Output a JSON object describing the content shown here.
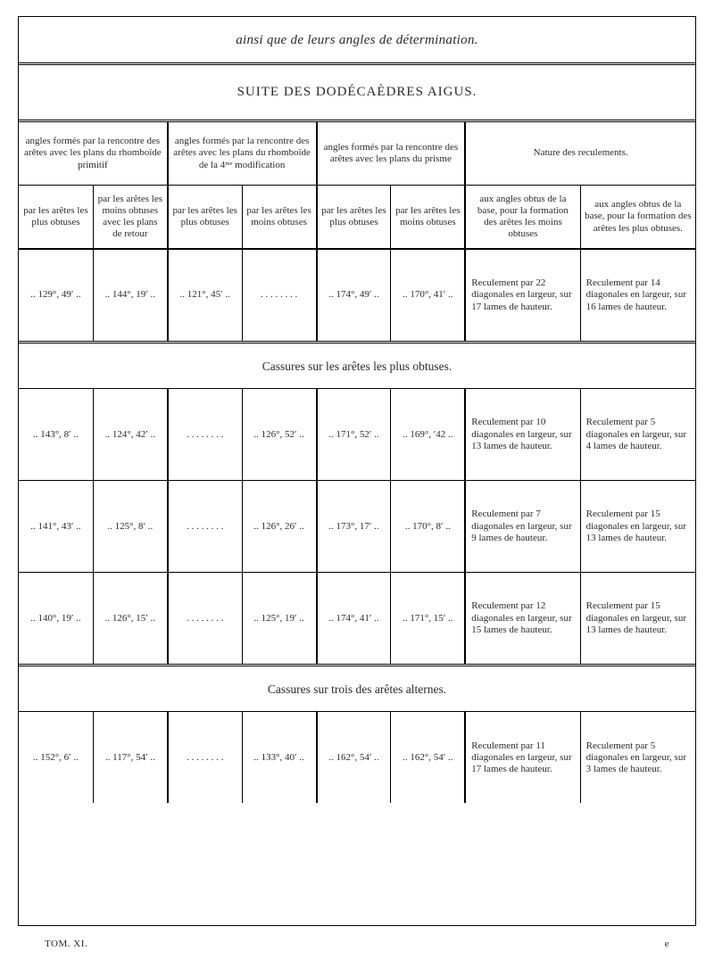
{
  "pretitle": "ainsi que de leurs angles de détermination.",
  "section_title": "SUITE DES DODÉCAÈDRES AIGUS.",
  "headers": {
    "g1": "angles formés par la rencontre des arêtes avec les plans du rhomboïde primitif",
    "g2": "angles formés par la rencontre des arêtes avec les plans du rhomboïde de la 4ᵐᵉ modification",
    "g3": "angles formés par la rencontre des arêtes avec les plans du prisme",
    "g4": "Nature des reculements.",
    "s1": "par les arêtes les plus obtuses",
    "s2": "par les arêtes les moins obtuses avec les plans de retour",
    "s3": "par les arêtes les plus obtuses",
    "s4": "par les arêtes les moins obtuses",
    "s5": "par les arêtes les plus obtuses",
    "s6": "par les arêtes les moins obtuses",
    "s7": "aux angles obtus de la base, pour la formation des arêtes les moins obtuses",
    "s8": "aux angles obtus de la base, pour la formation des arêtes les plus obtuses."
  },
  "row_main": {
    "c1": ".. 129°, 49′ ..",
    "c2": ".. 144°, 19′ ..",
    "c3": ".. 121°, 45′ ..",
    "c4": ". . . . . . . .",
    "c5": ".. 174°, 49′ ..",
    "c6": ".. 170°, 41′ ..",
    "c7": "Reculement par 22 diagonales en largeur, sur 17 lames de hauteur.",
    "c8": "Reculement par 14 diagonales en largeur, sur 16 lames de hauteur."
  },
  "section2": "Cassures sur les arêtes les plus obtuses.",
  "rows2": [
    {
      "c1": ".. 143°, 8′ ..",
      "c2": ".. 124°, 42′ ..",
      "c3": ". . . . . . . .",
      "c4": ".. 126°, 52′ ..",
      "c5": ".. 171°, 52′ ..",
      "c6": ".. 169°, ′42 ..",
      "c7": "Reculement par 10 diagonales en largeur, sur 13 lames de hauteur.",
      "c8": "Reculement par 5 diagonales en largeur, sur 4 lames de hauteur."
    },
    {
      "c1": ".. 141°, 43′ ..",
      "c2": ".. 125°, 8′ ..",
      "c3": ". . . . . . . .",
      "c4": ".. 126°, 26′ ..",
      "c5": ".. 173°, 17′ ..",
      "c6": ".. 170°, 8′ ..",
      "c7": "Reculement par 7 diagonales en largeur, sur 9 lames de hauteur.",
      "c8": "Reculement par 15 diagonales en largeur, sur 13 lames de hauteur."
    },
    {
      "c1": ".. 140°, 19′ ..",
      "c2": ".. 126°, 15′ ..",
      "c3": ". . . . . . . .",
      "c4": ".. 125°, 19′ ..",
      "c5": ".. 174°, 41′ ..",
      "c6": ".. 171°, 15′ ..",
      "c7": "Reculement par 12 diagonales en largeur, sur 15 lames de hauteur.",
      "c8": "Reculement par 15 diagonales en largeur, sur 13 lames de hauteur."
    }
  ],
  "section3": "Cassures sur trois des arêtes alternes.",
  "row3": {
    "c1": ".. 152°, 6′ ..",
    "c2": ".. 117°, 54′ ..",
    "c3": ". . . . . . . .",
    "c4": ".. 133°, 40′ ..",
    "c5": ".. 162°, 54′ ..",
    "c6": ".. 162°, 54′ ..",
    "c7": "Reculement par 11 diagonales en largeur, sur 17 lames de hauteur.",
    "c8": "Reculement par 5 diagonales en largeur, sur 3 lames de hauteur."
  },
  "footer_left": "TOM. XI.",
  "footer_right": "e"
}
